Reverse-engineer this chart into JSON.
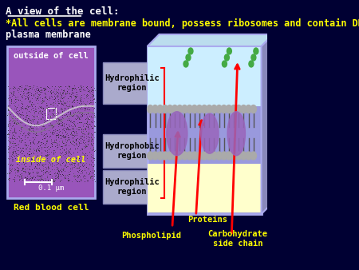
{
  "bg_color": "#000033",
  "title_line1": "A view of the cell:",
  "title_line2": "*All cells are membrane bound, possess ribosomes and contain DNA",
  "title_line3": "plasma membrane",
  "title_color": "#ffffff",
  "star_color": "#ffff00",
  "title_underline": true,
  "left_box_bg": "#9955bb",
  "left_box_border": "#aaaaee",
  "outside_label": "outside of cell",
  "inside_label": "inside of cell",
  "inside_label_color": "#ffff00",
  "scale_label": "0.1 μm",
  "rbc_label": "Red blood cell",
  "rbc_label_color": "#ffff00",
  "right_box_bg": "#9999dd",
  "right_box_border": "#aaaaee",
  "label_box_bg": "#aaaadd",
  "hydrophilic1": "Hydrophilic\nregion",
  "hydrophobic": "Hydrophobic\nregion",
  "hydrophilic2": "Hydrophilic\nregion",
  "proteins_label": "Proteins",
  "phospholipid_label": "Phospholipid",
  "carbohydrate_label": "Carbohydrate\nside chain",
  "arrow_color": "#ff0000",
  "label_text_color": "#000000",
  "bottom_label_color": "#ffff00"
}
